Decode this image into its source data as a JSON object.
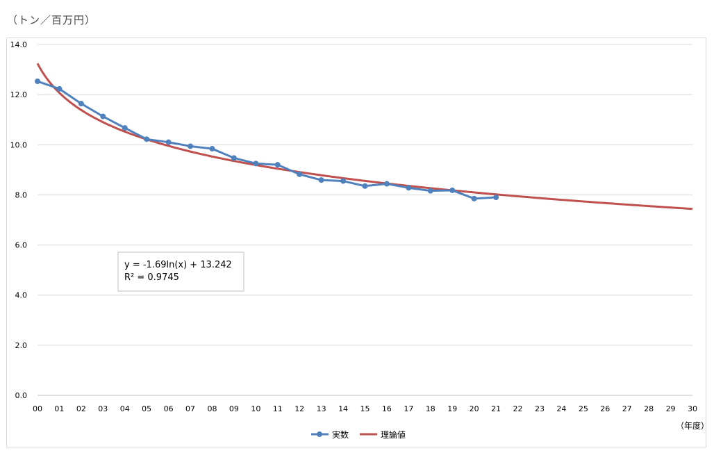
{
  "header": {
    "unit_label": "（トン／百万円）"
  },
  "chart_data": {
    "type": "line",
    "ylim": [
      0,
      14
    ],
    "yticks": [
      "0.0",
      "2.0",
      "4.0",
      "6.0",
      "8.0",
      "10.0",
      "12.0",
      "14.0"
    ],
    "x_categories": [
      "00",
      "01",
      "02",
      "03",
      "04",
      "05",
      "06",
      "07",
      "08",
      "09",
      "10",
      "11",
      "12",
      "13",
      "14",
      "15",
      "16",
      "17",
      "18",
      "19",
      "20",
      "21",
      "22",
      "23",
      "24",
      "25",
      "26",
      "27",
      "28",
      "29",
      "30"
    ],
    "xlabel": "（年度）",
    "grid": "horizontal",
    "legend_position": "bottom",
    "series": [
      {
        "name": "実数",
        "color": "#4f81bd",
        "marker": "circle",
        "values": [
          12.53,
          12.23,
          11.64,
          11.13,
          10.67,
          10.22,
          10.1,
          9.94,
          9.84,
          9.47,
          9.25,
          9.2,
          8.82,
          8.59,
          8.55,
          8.35,
          8.44,
          8.28,
          8.16,
          8.18,
          7.85,
          7.9
        ]
      },
      {
        "name": "理論値",
        "color": "#c0504d",
        "type": "trendline",
        "formula": {
          "a": -1.69,
          "b": 13.242,
          "kind": "log"
        }
      }
    ],
    "annotation": {
      "equation": "y = -1.69ln(x) + 13.242",
      "r2": "R² = 0.9745"
    }
  }
}
